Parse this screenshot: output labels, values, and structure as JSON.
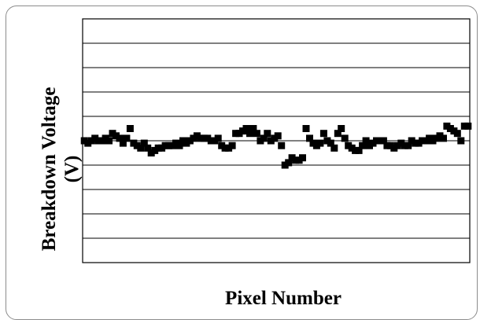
{
  "chart_data": {
    "type": "scatter",
    "title": "",
    "xlabel": "Pixel Number",
    "ylabel_line1": "Breakdown Voltage",
    "ylabel_line2": "(V)",
    "grid": true,
    "legend": "none",
    "marker_color": "#000000",
    "xlim": [
      0,
      220
    ],
    "ylim": [
      0,
      10
    ],
    "series": [
      {
        "points": [
          [
            1,
            5.0
          ],
          [
            3,
            4.9
          ],
          [
            5,
            5.0
          ],
          [
            7,
            5.1
          ],
          [
            9,
            5.0
          ],
          [
            11,
            5.0
          ],
          [
            13,
            5.1
          ],
          [
            15,
            5.0
          ],
          [
            17,
            5.3
          ],
          [
            19,
            5.2
          ],
          [
            21,
            5.1
          ],
          [
            23,
            4.9
          ],
          [
            25,
            5.1
          ],
          [
            27,
            5.5
          ],
          [
            29,
            4.9
          ],
          [
            31,
            4.8
          ],
          [
            33,
            4.7
          ],
          [
            35,
            4.9
          ],
          [
            37,
            4.7
          ],
          [
            39,
            4.5
          ],
          [
            41,
            4.6
          ],
          [
            43,
            4.7
          ],
          [
            45,
            4.7
          ],
          [
            47,
            4.8
          ],
          [
            49,
            4.8
          ],
          [
            51,
            4.8
          ],
          [
            53,
            4.9
          ],
          [
            55,
            4.8
          ],
          [
            57,
            5.0
          ],
          [
            59,
            4.9
          ],
          [
            61,
            5.0
          ],
          [
            63,
            5.1
          ],
          [
            65,
            5.2
          ],
          [
            67,
            5.1
          ],
          [
            69,
            5.1
          ],
          [
            71,
            5.1
          ],
          [
            73,
            5.0
          ],
          [
            75,
            5.0
          ],
          [
            77,
            5.1
          ],
          [
            79,
            4.8
          ],
          [
            81,
            4.7
          ],
          [
            83,
            4.7
          ],
          [
            85,
            4.8
          ],
          [
            87,
            5.3
          ],
          [
            89,
            5.3
          ],
          [
            91,
            5.4
          ],
          [
            93,
            5.5
          ],
          [
            95,
            5.3
          ],
          [
            97,
            5.5
          ],
          [
            99,
            5.3
          ],
          [
            101,
            5.0
          ],
          [
            103,
            5.1
          ],
          [
            105,
            5.3
          ],
          [
            107,
            5.0
          ],
          [
            109,
            5.1
          ],
          [
            111,
            5.2
          ],
          [
            113,
            4.8
          ],
          [
            115,
            4.0
          ],
          [
            117,
            4.1
          ],
          [
            119,
            4.3
          ],
          [
            121,
            4.2
          ],
          [
            123,
            4.2
          ],
          [
            125,
            4.3
          ],
          [
            127,
            5.5
          ],
          [
            129,
            5.1
          ],
          [
            131,
            4.9
          ],
          [
            133,
            4.8
          ],
          [
            135,
            4.9
          ],
          [
            137,
            5.3
          ],
          [
            139,
            5.0
          ],
          [
            141,
            4.9
          ],
          [
            143,
            4.7
          ],
          [
            145,
            5.3
          ],
          [
            147,
            5.5
          ],
          [
            149,
            5.1
          ],
          [
            151,
            4.8
          ],
          [
            153,
            4.7
          ],
          [
            155,
            4.6
          ],
          [
            157,
            4.6
          ],
          [
            159,
            4.8
          ],
          [
            161,
            5.0
          ],
          [
            163,
            4.8
          ],
          [
            165,
            4.9
          ],
          [
            167,
            5.0
          ],
          [
            169,
            5.0
          ],
          [
            171,
            5.0
          ],
          [
            173,
            4.8
          ],
          [
            175,
            4.8
          ],
          [
            177,
            4.7
          ],
          [
            179,
            4.8
          ],
          [
            181,
            4.9
          ],
          [
            183,
            4.8
          ],
          [
            185,
            4.8
          ],
          [
            187,
            5.0
          ],
          [
            189,
            4.9
          ],
          [
            191,
            4.9
          ],
          [
            193,
            5.0
          ],
          [
            195,
            5.0
          ],
          [
            197,
            5.1
          ],
          [
            199,
            5.0
          ],
          [
            201,
            5.1
          ],
          [
            203,
            5.2
          ],
          [
            205,
            5.1
          ],
          [
            207,
            5.6
          ],
          [
            209,
            5.5
          ],
          [
            211,
            5.4
          ],
          [
            213,
            5.3
          ],
          [
            215,
            5.0
          ],
          [
            217,
            5.6
          ],
          [
            219,
            5.6
          ]
        ]
      }
    ]
  }
}
